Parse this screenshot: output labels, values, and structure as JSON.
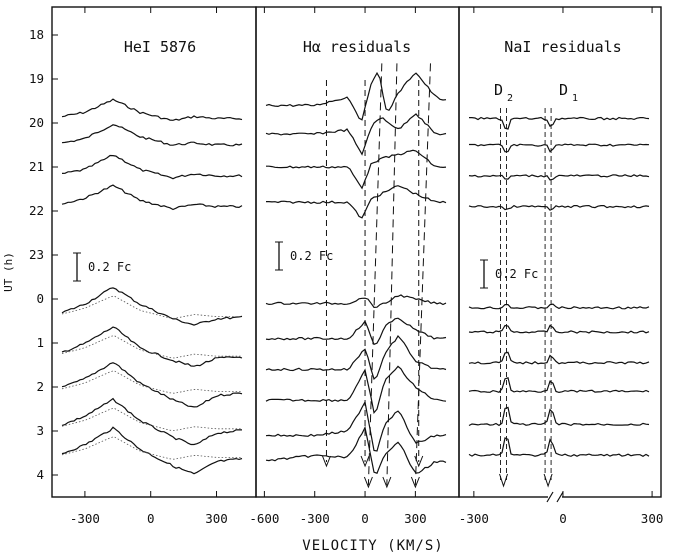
{
  "chart_data": [
    {
      "type": "line",
      "title": "HeI 5876",
      "ylabel": "UT (h)",
      "xlim": [
        -450,
        480
      ],
      "x_ticks": [
        "-300",
        "0",
        "300"
      ],
      "y_ticks": [
        "18",
        "19",
        "20",
        "21",
        "22",
        "23",
        "0",
        "1",
        "2",
        "3",
        "4"
      ],
      "scale_bar": "0.2 Fc",
      "series": [
        {
          "ut": 19.9,
          "x": [
            -450,
            -300,
            -170,
            -50,
            100,
            200,
            300,
            480
          ],
          "y": [
            0,
            0.015,
            0.045,
            0.015,
            -0.005,
            0.005,
            0,
            0
          ]
        },
        {
          "ut": 20.5,
          "x": [
            -450,
            -300,
            -170,
            -50,
            100,
            200,
            300,
            480
          ],
          "y": [
            0,
            0.015,
            0.05,
            0.02,
            0,
            0.005,
            0,
            0
          ]
        },
        {
          "ut": 21.2,
          "x": [
            -450,
            -300,
            -170,
            -50,
            100,
            200,
            300,
            480
          ],
          "y": [
            0,
            0.015,
            0.05,
            0.015,
            -0.005,
            0.005,
            0,
            0
          ]
        },
        {
          "ut": 21.9,
          "x": [
            -450,
            -300,
            -170,
            -50,
            100,
            200,
            300,
            480
          ],
          "y": [
            0,
            0.02,
            0.05,
            0.015,
            -0.005,
            0.005,
            0,
            0
          ]
        },
        {
          "ut": 0.4,
          "x": [
            -450,
            -300,
            -170,
            -50,
            100,
            200,
            300,
            480
          ],
          "y": [
            0,
            0.03,
            0.07,
            0.03,
            -0.005,
            -0.02,
            -0.005,
            0
          ]
        },
        {
          "ut": 1.3,
          "x": [
            -450,
            -300,
            -170,
            -50,
            100,
            200,
            300,
            480
          ],
          "y": [
            0,
            0.03,
            0.07,
            0.02,
            -0.01,
            -0.025,
            -0.005,
            0
          ]
        },
        {
          "ut": 2.1,
          "x": [
            -450,
            -300,
            -170,
            -50,
            100,
            200,
            300,
            480
          ],
          "y": [
            0,
            0.03,
            0.07,
            0.02,
            -0.02,
            -0.04,
            -0.01,
            0
          ]
        },
        {
          "ut": 2.95,
          "x": [
            -450,
            -300,
            -170,
            -50,
            100,
            200,
            300,
            480
          ],
          "y": [
            0,
            0.03,
            0.07,
            0.02,
            -0.02,
            -0.04,
            -0.01,
            0
          ]
        },
        {
          "ut": 3.6,
          "x": [
            -450,
            -300,
            -170,
            -50,
            100,
            200,
            300,
            480
          ],
          "y": [
            0,
            0.03,
            0.07,
            0.02,
            -0.02,
            -0.04,
            -0.01,
            0
          ]
        }
      ]
    },
    {
      "type": "line",
      "title": "Hα residuals",
      "xlim": [
        -650,
        560
      ],
      "x_ticks": [
        "-600",
        "-300",
        "0",
        "300"
      ],
      "scale_bar": "0.2 Fc",
      "features": {
        "fixed_velocities": [
          -230,
          0,
          320
        ],
        "drifting_lines": [
          {
            "from": [
              100,
              19.1
            ],
            "to": [
              20,
              4.0
            ]
          },
          {
            "from": [
              190,
              19.1
            ],
            "to": [
              130,
              4.0
            ]
          },
          {
            "from": [
              390,
              19.1
            ],
            "to": [
              300,
              4.0
            ]
          }
        ]
      },
      "series": [
        {
          "ut": 19.6,
          "x": [
            -650,
            -300,
            -100,
            -20,
            40,
            80,
            130,
            200,
            300,
            420,
            560
          ],
          "y": [
            0,
            0,
            0.02,
            -0.04,
            0.06,
            0.08,
            -0.02,
            0.03,
            0.08,
            0.02,
            0
          ]
        },
        {
          "ut": 20.25,
          "x": [
            -650,
            -300,
            -100,
            -20,
            40,
            100,
            200,
            300,
            420,
            560
          ],
          "y": [
            0,
            0,
            0.01,
            -0.05,
            0.02,
            0.04,
            0.01,
            0.05,
            0,
            0
          ]
        },
        {
          "ut": 21.0,
          "x": [
            -650,
            -300,
            -100,
            -20,
            40,
            100,
            200,
            300,
            420,
            560
          ],
          "y": [
            0,
            0,
            0,
            -0.05,
            0.01,
            0.02,
            0.03,
            0.04,
            0,
            0
          ]
        },
        {
          "ut": 21.8,
          "x": [
            -650,
            -300,
            -100,
            -20,
            40,
            100,
            200,
            300,
            420,
            560
          ],
          "y": [
            0,
            0,
            0,
            -0.04,
            0.01,
            0.02,
            0.04,
            0.02,
            0,
            0
          ]
        },
        {
          "ut": 0.1,
          "x": [
            -650,
            -300,
            -100,
            0,
            60,
            120,
            200,
            300,
            420,
            560
          ],
          "y": [
            0,
            0,
            0,
            0.015,
            -0.01,
            0,
            0.02,
            0.01,
            0,
            0
          ]
        },
        {
          "ut": 0.9,
          "x": [
            -650,
            -300,
            -100,
            0,
            60,
            120,
            200,
            300,
            420,
            560
          ],
          "y": [
            0,
            0,
            0,
            0.04,
            -0.02,
            0.03,
            0.05,
            0.02,
            0,
            0
          ]
        },
        {
          "ut": 1.6,
          "x": [
            -650,
            -300,
            -100,
            0,
            60,
            120,
            200,
            300,
            420,
            560
          ],
          "y": [
            0,
            0,
            0,
            0.05,
            -0.03,
            0.04,
            0.08,
            0.02,
            0,
            0
          ]
        },
        {
          "ut": 2.3,
          "x": [
            -650,
            -300,
            -100,
            0,
            60,
            120,
            200,
            300,
            420,
            560
          ],
          "y": [
            0,
            0,
            0,
            0.07,
            -0.04,
            0.05,
            0.08,
            0.03,
            0,
            0
          ]
        },
        {
          "ut": 3.1,
          "x": [
            -650,
            -300,
            -100,
            0,
            60,
            120,
            200,
            300,
            420,
            560
          ],
          "y": [
            0,
            0,
            0.01,
            0.08,
            -0.05,
            0.03,
            0.06,
            -0.02,
            0,
            0
          ]
        },
        {
          "ut": 3.7,
          "x": [
            -650,
            -300,
            -100,
            0,
            60,
            120,
            200,
            300,
            420,
            560
          ],
          "y": [
            0,
            0.015,
            0.01,
            0.08,
            -0.04,
            0.02,
            0.05,
            -0.03,
            0,
            0
          ]
        }
      ]
    },
    {
      "type": "line",
      "title": "NaI residuals",
      "xlim": [
        -350,
        330
      ],
      "x_ticks": [
        "-300",
        "0",
        "300"
      ],
      "x_ticks_left_break": [
        "-300",
        "0"
      ],
      "x_break": true,
      "line_labels": [
        "D",
        "2",
        "D",
        "1"
      ],
      "scale_bar": "0.2 Fc",
      "series": [
        {
          "ut": 19.9,
          "y_d2": -0.03,
          "y_d1": -0.02
        },
        {
          "ut": 20.5,
          "y_d2": -0.02,
          "y_d1": -0.015
        },
        {
          "ut": 21.2,
          "y_d2": -0.01,
          "y_d1": -0.01
        },
        {
          "ut": 21.9,
          "y_d2": -0.01,
          "y_d1": -0.01
        },
        {
          "ut": 0.2,
          "y_d2": 0.01,
          "y_d1": 0.01
        },
        {
          "ut": 0.75,
          "y_d2": 0.02,
          "y_d1": 0.015
        },
        {
          "ut": 1.45,
          "y_d2": 0.03,
          "y_d1": 0.02
        },
        {
          "ut": 2.1,
          "y_d2": 0.04,
          "y_d1": 0.03
        },
        {
          "ut": 2.85,
          "y_d2": 0.05,
          "y_d1": 0.04
        },
        {
          "ut": 3.55,
          "y_d2": 0.05,
          "y_d1": 0.04
        }
      ]
    }
  ],
  "xlabel": "VELOCITY (KM/S)"
}
